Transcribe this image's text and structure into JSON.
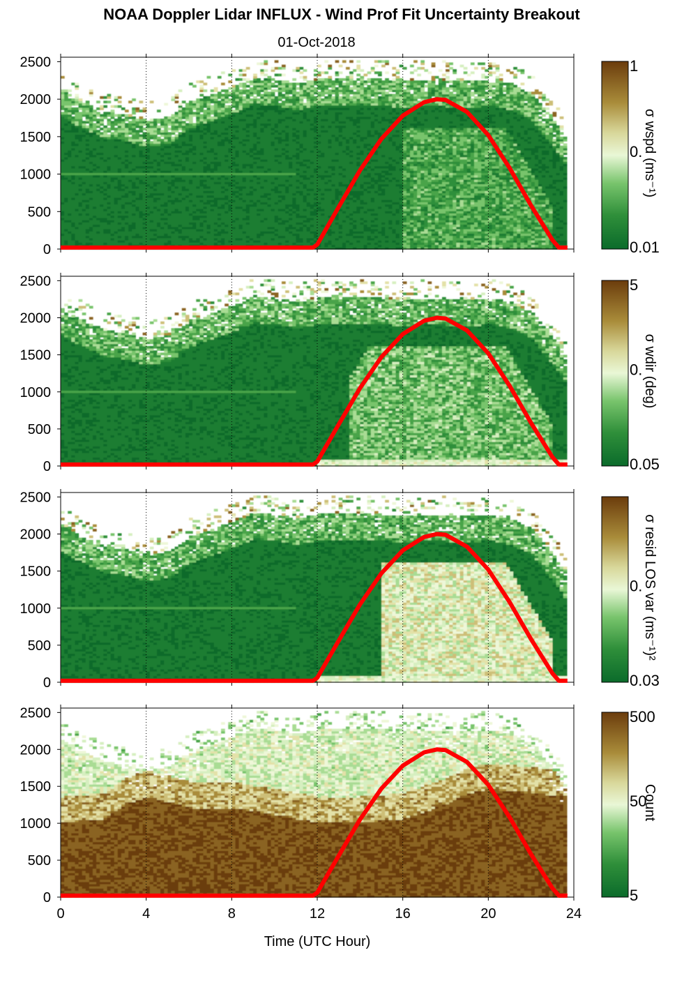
{
  "chart_data": {
    "type": "heatmap",
    "title": "NOAA Doppler Lidar INFLUX - Wind Prof Fit Uncertainty Breakout",
    "subtitle": "01-Oct-2018",
    "xlabel": "Time (UTC Hour)",
    "xlim": [
      0,
      24
    ],
    "xticks": [
      "0",
      "4",
      "8",
      "12",
      "16",
      "20",
      "24"
    ],
    "ylim": [
      0,
      2560
    ],
    "yticks": [
      "0",
      "500",
      "1000",
      "1500",
      "2000",
      "2500"
    ],
    "grid": "dotted vertical lines every 4 hours",
    "colormap": "green-to-brown diverging",
    "panels": [
      {
        "colorbar_label": "σ wspd (ms⁻¹)",
        "colorbar_ticks": [
          "1",
          "0.",
          "0.01"
        ],
        "top_envelope": [
          [
            0,
            2100
          ],
          [
            1,
            1950
          ],
          [
            2,
            1820
          ],
          [
            3,
            1780
          ],
          [
            4,
            1700
          ],
          [
            5,
            1750
          ],
          [
            6,
            1950
          ],
          [
            7,
            2050
          ],
          [
            8,
            2150
          ],
          [
            9,
            2280
          ],
          [
            10,
            2250
          ],
          [
            11,
            2200
          ],
          [
            12,
            2250
          ],
          [
            13,
            2250
          ],
          [
            14,
            2250
          ],
          [
            15,
            2250
          ],
          [
            16,
            2230
          ],
          [
            17,
            2250
          ],
          [
            18,
            2240
          ],
          [
            19,
            2220
          ],
          [
            20,
            2250
          ],
          [
            21,
            2200
          ],
          [
            22,
            2050
          ],
          [
            23,
            1700
          ],
          [
            23.6,
            1450
          ]
        ],
        "high_region_start": 16.0,
        "gradient_start_height": 0
      },
      {
        "colorbar_label": "σ wdir (deg)",
        "colorbar_ticks": [
          "5",
          "0.",
          "0.05"
        ],
        "top_envelope": [
          [
            0,
            2100
          ],
          [
            1,
            1950
          ],
          [
            2,
            1820
          ],
          [
            3,
            1780
          ],
          [
            4,
            1700
          ],
          [
            5,
            1750
          ],
          [
            6,
            1950
          ],
          [
            7,
            2050
          ],
          [
            8,
            2150
          ],
          [
            9,
            2280
          ],
          [
            10,
            2250
          ],
          [
            11,
            2200
          ],
          [
            12,
            2250
          ],
          [
            13,
            2250
          ],
          [
            14,
            2250
          ],
          [
            15,
            2250
          ],
          [
            16,
            2230
          ],
          [
            17,
            2250
          ],
          [
            18,
            2240
          ],
          [
            19,
            2220
          ],
          [
            20,
            2250
          ],
          [
            21,
            2200
          ],
          [
            22,
            2050
          ],
          [
            23,
            1700
          ],
          [
            23.6,
            1450
          ]
        ],
        "high_region_start": 13.5,
        "gradient_start_height": 0
      },
      {
        "colorbar_label": "σ resid LOS var (ms⁻¹)²",
        "colorbar_ticks": [
          "0.",
          "0.03"
        ],
        "top_envelope": [
          [
            0,
            2100
          ],
          [
            1,
            1950
          ],
          [
            2,
            1820
          ],
          [
            3,
            1780
          ],
          [
            4,
            1700
          ],
          [
            5,
            1750
          ],
          [
            6,
            1950
          ],
          [
            7,
            2050
          ],
          [
            8,
            2150
          ],
          [
            9,
            2280
          ],
          [
            10,
            2250
          ],
          [
            11,
            2200
          ],
          [
            12,
            2250
          ],
          [
            13,
            2250
          ],
          [
            14,
            2250
          ],
          [
            15,
            2250
          ],
          [
            16,
            2230
          ],
          [
            17,
            2250
          ],
          [
            18,
            2240
          ],
          [
            19,
            2220
          ],
          [
            20,
            2250
          ],
          [
            21,
            2200
          ],
          [
            22,
            2050
          ],
          [
            23,
            1700
          ],
          [
            23.6,
            1450
          ]
        ],
        "high_region_start": 15.0,
        "gradient_start_height": 0
      },
      {
        "colorbar_label": "Count",
        "colorbar_ticks": [
          "500",
          "50",
          "5"
        ],
        "top_envelope": [
          [
            0,
            2100
          ],
          [
            1,
            1950
          ],
          [
            2,
            1820
          ],
          [
            3,
            1780
          ],
          [
            4,
            1700
          ],
          [
            5,
            1750
          ],
          [
            6,
            1950
          ],
          [
            7,
            2050
          ],
          [
            8,
            2150
          ],
          [
            9,
            2280
          ],
          [
            10,
            2250
          ],
          [
            11,
            2200
          ],
          [
            12,
            2250
          ],
          [
            13,
            2250
          ],
          [
            14,
            2250
          ],
          [
            15,
            2250
          ],
          [
            16,
            2230
          ],
          [
            17,
            2250
          ],
          [
            18,
            2240
          ],
          [
            19,
            2220
          ],
          [
            20,
            2250
          ],
          [
            21,
            2200
          ],
          [
            22,
            2050
          ],
          [
            23,
            1700
          ],
          [
            23.6,
            1450
          ]
        ],
        "dense_top": [
          [
            0,
            1000
          ],
          [
            2,
            1050
          ],
          [
            3,
            1250
          ],
          [
            4,
            1350
          ],
          [
            6,
            1200
          ],
          [
            8,
            1200
          ],
          [
            10,
            1100
          ],
          [
            12,
            1000
          ],
          [
            14,
            1000
          ],
          [
            16,
            1050
          ],
          [
            18,
            1250
          ],
          [
            19,
            1400
          ],
          [
            20,
            1450
          ],
          [
            22,
            1400
          ],
          [
            23.6,
            1350
          ]
        ]
      }
    ],
    "overlay": {
      "name": "solar curve",
      "color": "#ff0000",
      "points": [
        [
          0,
          20
        ],
        [
          11.8,
          20
        ],
        [
          12,
          60
        ],
        [
          13,
          560
        ],
        [
          14,
          1050
        ],
        [
          15,
          1470
        ],
        [
          16,
          1780
        ],
        [
          17,
          1960
        ],
        [
          17.6,
          2000
        ],
        [
          18,
          1990
        ],
        [
          19,
          1830
        ],
        [
          20,
          1520
        ],
        [
          21,
          1080
        ],
        [
          22,
          580
        ],
        [
          23,
          120
        ],
        [
          23.3,
          20
        ],
        [
          23.7,
          20
        ]
      ]
    }
  }
}
